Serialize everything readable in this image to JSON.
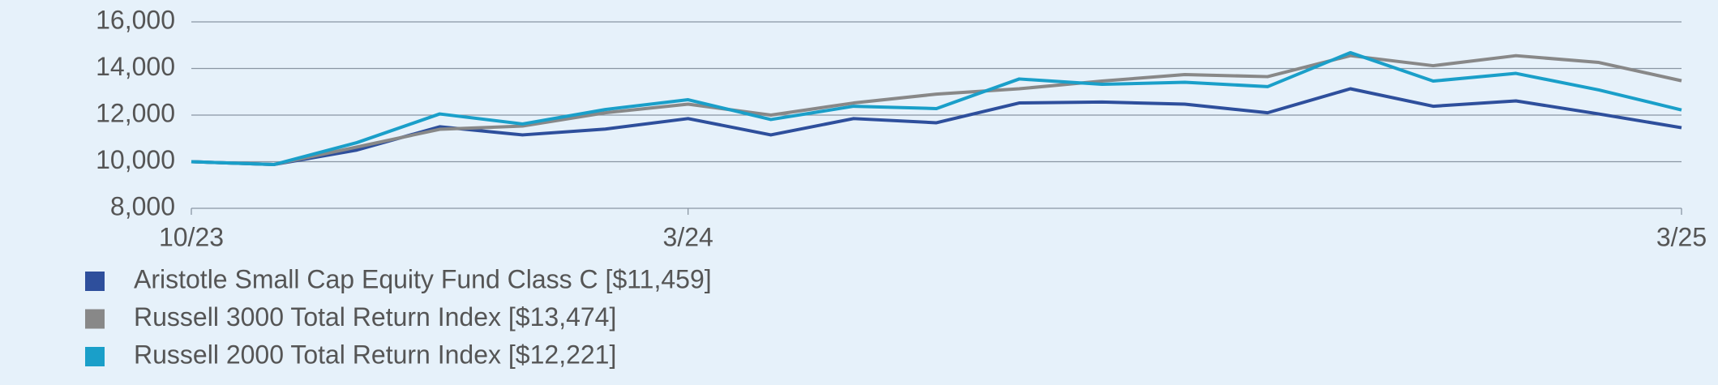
{
  "chart_data": {
    "type": "line",
    "categories": [
      "10/23",
      null,
      null,
      null,
      null,
      null,
      "3/24",
      null,
      null,
      null,
      null,
      null,
      null,
      null,
      null,
      null,
      null,
      null,
      "3/25"
    ],
    "series": [
      {
        "name": "Aristotle Small Cap Equity Fund Class C [$11,459]",
        "color": "#2e4f9c",
        "values": [
          10000,
          9880,
          10500,
          11500,
          11150,
          11400,
          11850,
          11150,
          11850,
          11670,
          12520,
          12560,
          12470,
          12100,
          13130,
          12380,
          12610,
          12050,
          11459
        ]
      },
      {
        "name": "Russell 3000 Total Return Index [$13,474]",
        "color": "#888888",
        "values": [
          10000,
          9880,
          10630,
          11390,
          11530,
          12100,
          12470,
          12000,
          12520,
          12900,
          13130,
          13460,
          13740,
          13650,
          14550,
          14120,
          14550,
          14260,
          13474
        ]
      },
      {
        "name": "Russell 2000 Total Return Index [$12,221]",
        "color": "#1a9fc9",
        "values": [
          10000,
          9880,
          10820,
          12050,
          11620,
          12240,
          12660,
          11810,
          12380,
          12280,
          13550,
          13320,
          13410,
          13220,
          14680,
          13460,
          13790,
          13080,
          12221
        ]
      }
    ],
    "ylim": [
      8000,
      16000
    ],
    "yticks": [
      {
        "value": 8000,
        "label": "8,000"
      },
      {
        "value": 10000,
        "label": "10,000"
      },
      {
        "value": 12000,
        "label": "12,000"
      },
      {
        "value": 14000,
        "label": "14,000"
      },
      {
        "value": 16000,
        "label": "16,000"
      }
    ],
    "grid": true
  }
}
